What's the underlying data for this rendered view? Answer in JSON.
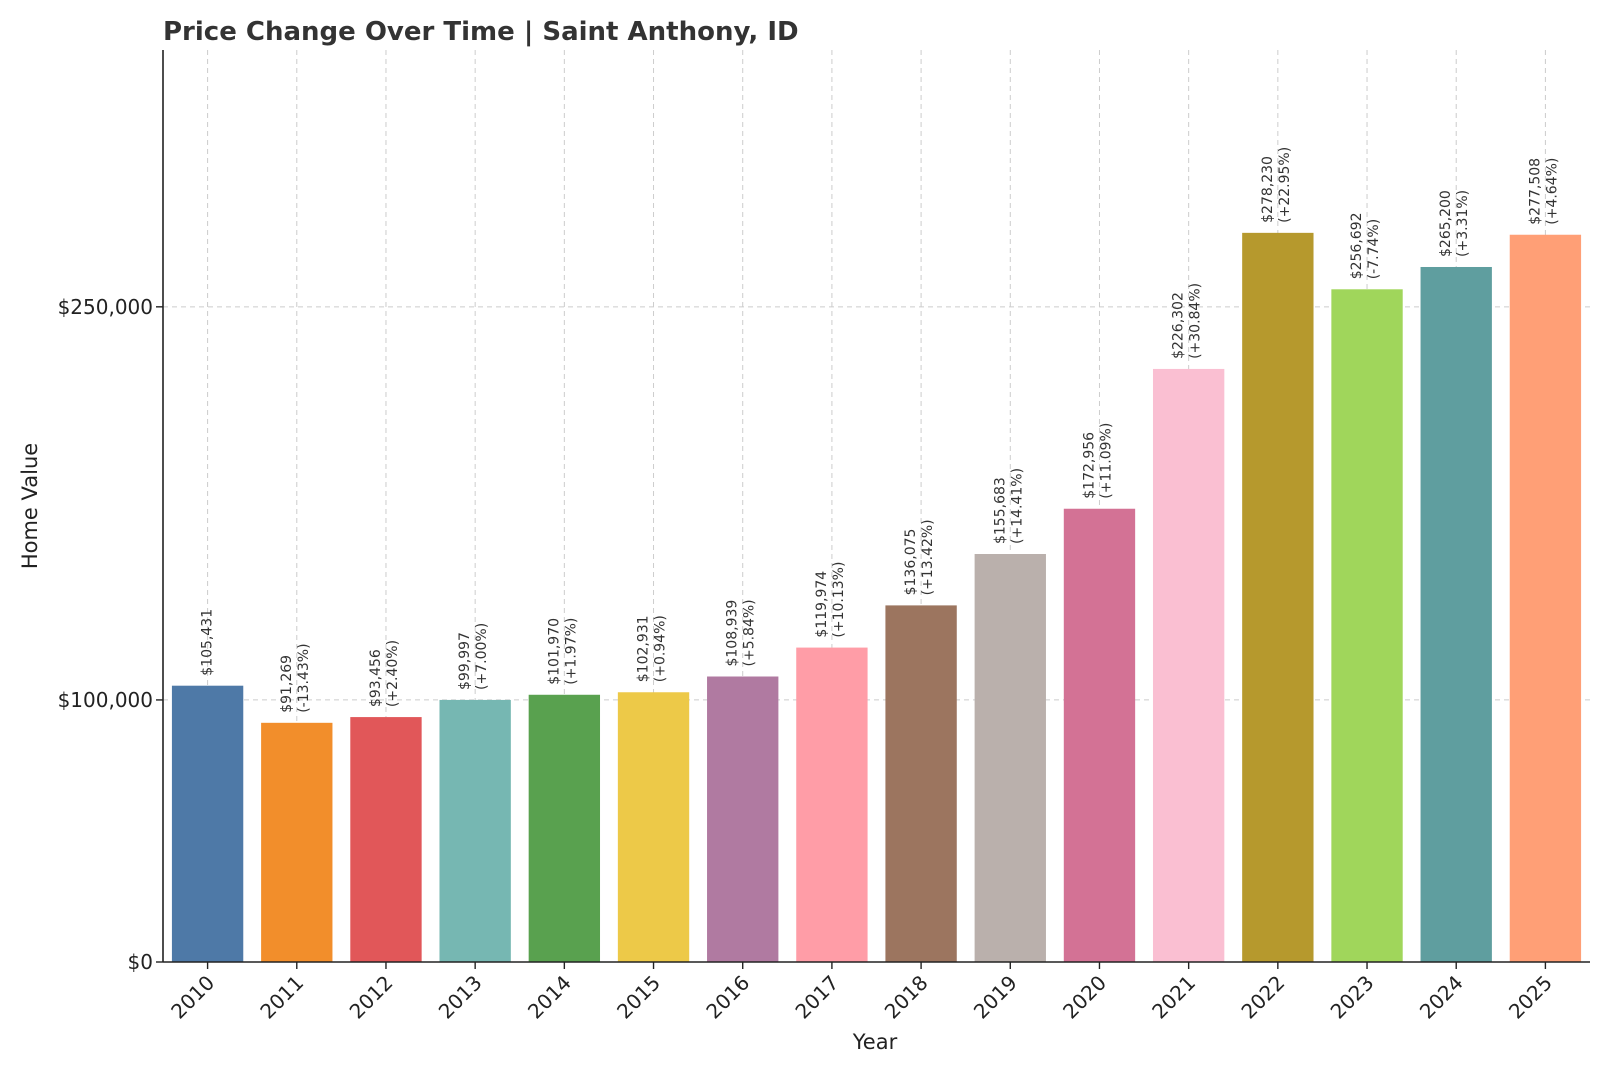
{
  "chart_data": {
    "type": "bar",
    "title": "Price Change Over Time | Saint Anthony, ID",
    "xlabel": "Year",
    "ylabel": "Home Value",
    "ylim": [
      0,
      348000
    ],
    "yticks": [
      0,
      100000,
      250000
    ],
    "ytick_labels": [
      "$0",
      "$100,000",
      "$250,000"
    ],
    "grid": true,
    "categories": [
      "2010",
      "2011",
      "2012",
      "2013",
      "2014",
      "2015",
      "2016",
      "2017",
      "2018",
      "2019",
      "2020",
      "2021",
      "2022",
      "2023",
      "2024",
      "2025"
    ],
    "values": [
      105431,
      91269,
      93456,
      99997,
      101970,
      102931,
      108939,
      119974,
      136075,
      155683,
      172956,
      226302,
      278230,
      256692,
      265200,
      277508
    ],
    "value_labels": [
      "$105,431",
      "$91,269",
      "$93,456",
      "$99,997",
      "$101,970",
      "$102,931",
      "$108,939",
      "$119,974",
      "$136,075",
      "$155,683",
      "$172,956",
      "$226,302",
      "$278,230",
      "$256,692",
      "$265,200",
      "$277,508"
    ],
    "change_labels": [
      "",
      "(-13.43%)",
      "(+2.40%)",
      "(+7.00%)",
      "(+1.97%)",
      "(+0.94%)",
      "(+5.84%)",
      "(+10.13%)",
      "(+13.42%)",
      "(+14.41%)",
      "(+11.09%)",
      "(+30.84%)",
      "(+22.95%)",
      "(-7.74%)",
      "(+3.31%)",
      "(+4.64%)"
    ],
    "colors": [
      "#4e79a7",
      "#f28e2b",
      "#e15759",
      "#76b7b2",
      "#59a14f",
      "#edc948",
      "#b07aa1",
      "#ff9da7",
      "#9c755f",
      "#bab0ac",
      "#d37295",
      "#fabfd2",
      "#b6992d",
      "#a0d65b",
      "#5f9e9f",
      "#ff9f76"
    ]
  }
}
